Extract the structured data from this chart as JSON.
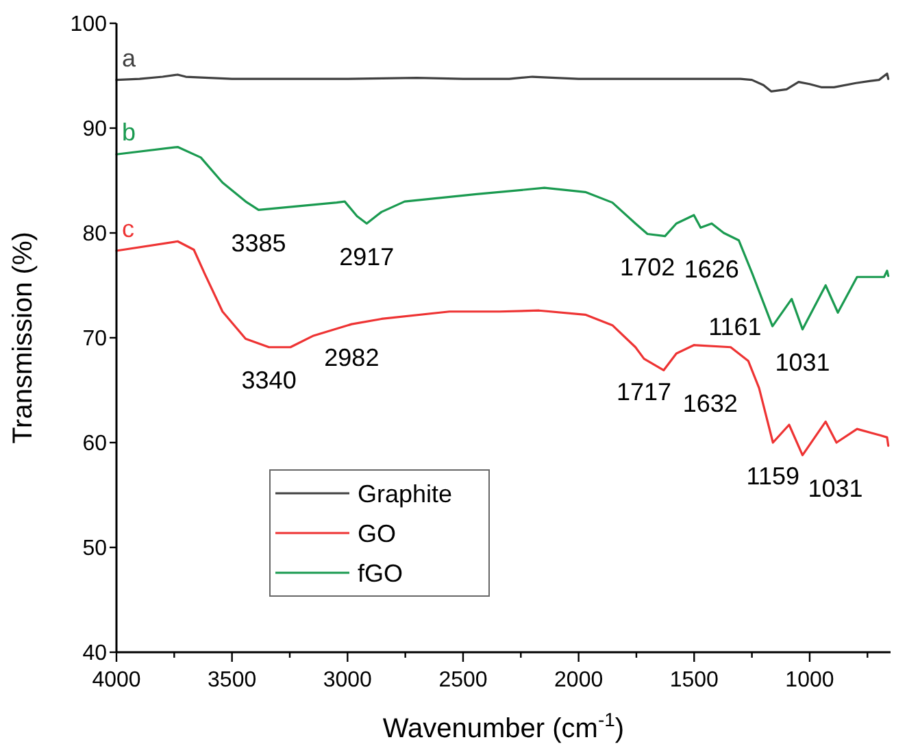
{
  "chart_data": {
    "type": "line",
    "xlabel": "Wavenumber (cm$^{-1}$)",
    "ylabel": "Transmission (%)",
    "xlim": [
      4000,
      650
    ],
    "xticks": [
      4000,
      {
        "value": 3750,
        "label": null
      },
      3500,
      {
        "value": 3250,
        "label": null
      },
      3000,
      {
        "value": 2750,
        "label": null
      },
      2500,
      {
        "value": 2250,
        "label": null
      },
      2000,
      {
        "value": 1750,
        "label": null
      },
      1500,
      {
        "value": 1250,
        "label": null
      },
      1000,
      {
        "value": 750,
        "label": null
      }
    ],
    "ylim": [
      40,
      100
    ],
    "yticks": [
      40,
      50,
      60,
      70,
      80,
      90,
      100
    ],
    "grid": false,
    "legend": "bottom left",
    "marker": "none",
    "line_style": "solid",
    "series": [
      {
        "name": "Graphite",
        "color": "#404040",
        "x": [
          4000,
          3900,
          3800,
          3735,
          3700,
          3600,
          3500,
          3300,
          3000,
          2700,
          2500,
          2300,
          2200,
          2000,
          1800,
          1500,
          1300,
          1250,
          1200,
          1166,
          1100,
          1048,
          1000,
          950,
          895,
          800,
          737,
          700,
          665,
          660
        ],
        "values": [
          94.6,
          94.7,
          94.9,
          95.1,
          94.9,
          94.8,
          94.7,
          94.7,
          94.7,
          94.8,
          94.7,
          94.7,
          94.9,
          94.7,
          94.7,
          94.7,
          94.7,
          94.6,
          94.1,
          93.5,
          93.7,
          94.4,
          94.2,
          93.9,
          93.9,
          94.3,
          94.5,
          94.6,
          95.2,
          94.7
        ]
      },
      {
        "name": "GO",
        "color": "#ee3333",
        "x": [
          4000,
          3735,
          3665,
          3618,
          3541,
          3441,
          3340,
          3247,
          3147,
          2982,
          2853,
          2559,
          2342,
          2171,
          1971,
          1854,
          1754,
          1717,
          1632,
          1577,
          1501,
          1342,
          1266,
          1219,
          1159,
          1089,
          1031,
          931,
          884,
          795,
          696,
          665,
          660
        ],
        "values": [
          78.3,
          79.2,
          78.4,
          76.1,
          72.5,
          69.9,
          69.1,
          69.1,
          70.2,
          71.3,
          71.8,
          72.5,
          72.5,
          72.6,
          72.2,
          71.2,
          69.1,
          68.0,
          66.9,
          68.5,
          69.3,
          69.1,
          67.8,
          65.2,
          60.0,
          61.7,
          58.8,
          62.0,
          60.0,
          61.3,
          60.7,
          60.5,
          59.7
        ]
      },
      {
        "name": "fGO",
        "color": "#1a9a50",
        "x": [
          4000,
          3735,
          3635,
          3541,
          3441,
          3385,
          3047,
          3012,
          2959,
          2917,
          2871,
          2853,
          2753,
          2442,
          2148,
          1971,
          1854,
          1754,
          1702,
          1626,
          1577,
          1501,
          1472,
          1424,
          1372,
          1307,
          1248,
          1161,
          1078,
          1031,
          931,
          878,
          795,
          678,
          665,
          660
        ],
        "values": [
          87.5,
          88.2,
          87.2,
          84.8,
          83.0,
          82.2,
          82.9,
          83.0,
          81.6,
          80.9,
          81.7,
          82.0,
          83.0,
          83.7,
          84.3,
          83.9,
          82.9,
          80.9,
          79.9,
          79.7,
          80.9,
          81.7,
          80.5,
          80.9,
          80.0,
          79.3,
          76.1,
          71.1,
          73.7,
          70.8,
          75.0,
          72.4,
          75.8,
          75.8,
          76.4,
          75.9
        ]
      }
    ],
    "annotations": [
      {
        "text": "a",
        "x": 4000,
        "y": 94.6
      },
      {
        "text": "b",
        "x": 4000,
        "y": 87.5
      },
      {
        "text": "c",
        "x": 4000,
        "y": 78.3
      },
      {
        "text": "3385",
        "x": 3385,
        "y": 82.2
      },
      {
        "text": "2917",
        "x": 2917,
        "y": 80.9
      },
      {
        "text": "1702",
        "x": 1702,
        "y": 79.9
      },
      {
        "text": "1626",
        "x": 1626,
        "y": 79.7
      },
      {
        "text": "1161",
        "x": 1161,
        "y": 71.1
      },
      {
        "text": "1031",
        "x": 1031,
        "y": 70.8
      },
      {
        "text": "3340",
        "x": 3340,
        "y": 69.1
      },
      {
        "text": "2982",
        "x": 2982,
        "y": 71.3
      },
      {
        "text": "1717",
        "x": 1717,
        "y": 68.0
      },
      {
        "text": "1632",
        "x": 1632,
        "y": 66.9
      },
      {
        "text": "1159",
        "x": 1159,
        "y": 60.0
      },
      {
        "text": "1031",
        "x": 1031,
        "y": 58.8
      }
    ]
  }
}
